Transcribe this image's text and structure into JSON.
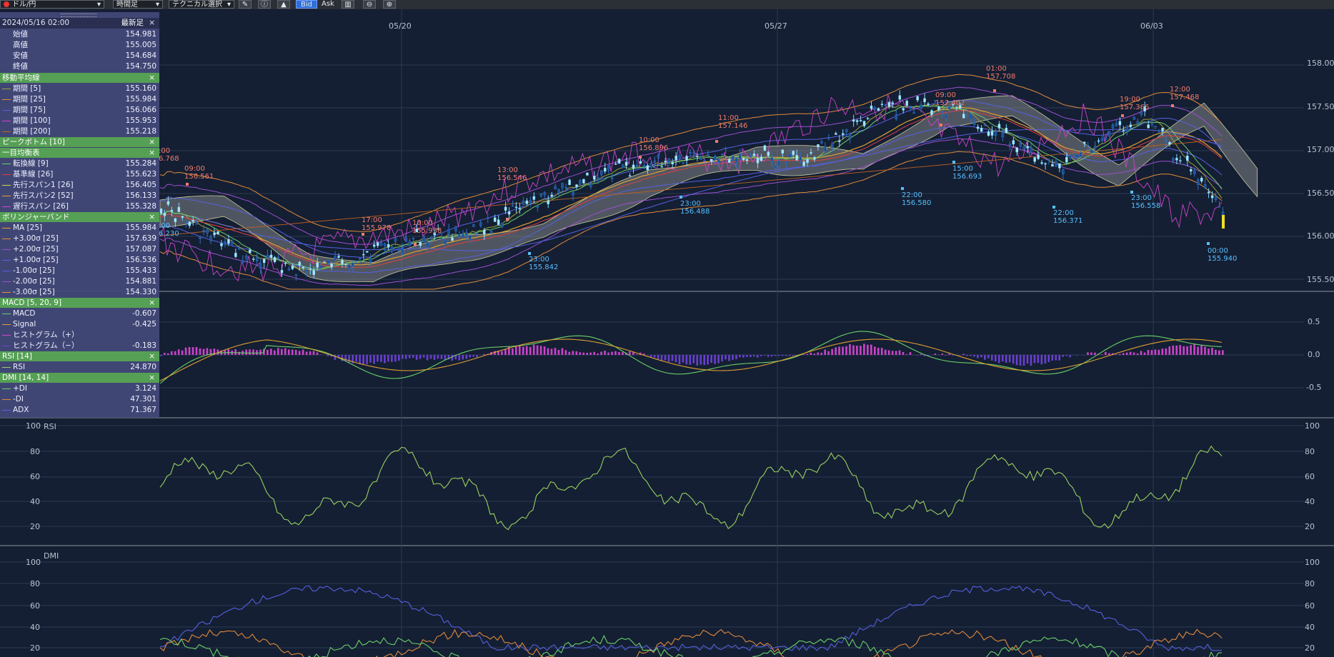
{
  "toolbar": {
    "pair": "ドル/円",
    "timeframe": "時間足",
    "technical": "テクニカル選択",
    "bid": "Bid",
    "ask": "Ask"
  },
  "panel": {
    "date": "2024/05/16 02:00",
    "latest_button": "最新足",
    "close_glyph": "×",
    "ohlc": [
      {
        "label": "始値",
        "value": "154.981"
      },
      {
        "label": "高値",
        "value": "155.005"
      },
      {
        "label": "安値",
        "value": "154.684"
      },
      {
        "label": "終値",
        "value": "154.750"
      }
    ],
    "sma_title": "移動平均線",
    "sma": [
      {
        "label": "期間 [5]",
        "value": "155.160",
        "color": "#9aa33a"
      },
      {
        "label": "期間 [25]",
        "value": "155.984",
        "color": "#e08a3a"
      },
      {
        "label": "期間 [75]",
        "value": "156.066",
        "color": "#5560e0"
      },
      {
        "label": "期間 [100]",
        "value": "155.953",
        "color": "#cc44cc"
      },
      {
        "label": "期間 [200]",
        "value": "155.218",
        "color": "#c06020"
      }
    ],
    "peak_title": "ピークボトム [10]",
    "ichimoku_title": "一目均衡表",
    "ichimoku": [
      {
        "label": "転換線 [9]",
        "value": "155.284",
        "color": "#6ad06a"
      },
      {
        "label": "基準線 [26]",
        "value": "155.623",
        "color": "#e04040"
      },
      {
        "label": "先行スパン1 [26]",
        "value": "156.405",
        "color": "#d6d64a"
      },
      {
        "label": "先行スパン2 [52]",
        "value": "156.133",
        "color": "#e0a030"
      },
      {
        "label": "遅行スパン [26]",
        "value": "155.328",
        "color": "#cc44cc"
      }
    ],
    "bb_title": "ボリンジャーバンド",
    "bb": [
      {
        "label": "MA [25]",
        "value": "155.984",
        "color": "#e0a030"
      },
      {
        "label": "+3.00σ [25]",
        "value": "157.639",
        "color": "#e08a3a"
      },
      {
        "label": "+2.00σ [25]",
        "value": "157.087",
        "color": "#9c4fd0"
      },
      {
        "label": "+1.00σ [25]",
        "value": "156.536",
        "color": "#5560e0"
      },
      {
        "label": "-1.00σ [25]",
        "value": "155.433",
        "color": "#5560e0"
      },
      {
        "label": "-2.00σ [25]",
        "value": "154.881",
        "color": "#9c4fd0"
      },
      {
        "label": "-3.00σ [25]",
        "value": "154.330",
        "color": "#e08a3a"
      }
    ],
    "macd_title": "MACD [5, 20, 9]",
    "macd": [
      {
        "label": "MACD",
        "value": "-0.607",
        "color": "#6ad06a"
      },
      {
        "label": "Signal",
        "value": "-0.425",
        "color": "#e0a030"
      },
      {
        "label": "ヒストグラム（+）",
        "value": "",
        "color": "#cc44cc"
      },
      {
        "label": "ヒストグラム（−）",
        "value": "-0.183",
        "color": "#6a40d0"
      }
    ],
    "rsi_title": "RSI [14]",
    "rsi": [
      {
        "label": "RSI",
        "value": "24.870",
        "color": "#9ad060"
      }
    ],
    "dmi_title": "DMI [14, 14]",
    "dmi": [
      {
        "label": "+DI",
        "value": "3.124",
        "color": "#6ad06a"
      },
      {
        "label": "-DI",
        "value": "47.301",
        "color": "#e0883a"
      },
      {
        "label": "ADX",
        "value": "71.367",
        "color": "#5560e0"
      }
    ]
  },
  "xaxis": [
    "05/20",
    "05/27",
    "06/03"
  ],
  "price_axis": [
    "158.000",
    "157.500",
    "157.000",
    "156.500",
    "156.000",
    "155.500"
  ],
  "macd_axis": [
    "0.5",
    "0.0",
    "-0.5"
  ],
  "rsi_title": "RSI",
  "rsi_axis": [
    "100",
    "80",
    "60",
    "40",
    "20"
  ],
  "dmi_title": "DMI",
  "dmi_axis": [
    "100",
    "80",
    "60",
    "40",
    "20"
  ],
  "annotations": [
    {
      "t": ":00",
      "p": "6.768",
      "kind": "red"
    },
    {
      "t": "09:00",
      "p": "156.561",
      "kind": "red"
    },
    {
      "t": "17:00",
      "p": "155.978",
      "kind": "red"
    },
    {
      "t": "10:00",
      "p": "155.938",
      "kind": "red"
    },
    {
      "t": "13:00",
      "p": "156.546",
      "kind": "red"
    },
    {
      "t": "10:00",
      "p": "156.896",
      "kind": "red"
    },
    {
      "t": "11:00",
      "p": "157.146",
      "kind": "red"
    },
    {
      "t": "09:00",
      "p": "157.402",
      "kind": "red"
    },
    {
      "t": "01:00",
      "p": "157.708",
      "kind": "red"
    },
    {
      "t": "19:00",
      "p": "157.366",
      "kind": "red"
    },
    {
      "t": "12:00",
      "p": "157.468",
      "kind": "red"
    },
    {
      "t": ":00",
      "p": "6.230",
      "kind": "blue"
    },
    {
      "t": "23:00",
      "p": "155.842",
      "kind": "blue"
    },
    {
      "t": "23:00",
      "p": "156.488",
      "kind": "blue"
    },
    {
      "t": "22:00",
      "p": "156.580",
      "kind": "blue"
    },
    {
      "t": "15:00",
      "p": "156.693",
      "kind": "blue"
    },
    {
      "t": "22:00",
      "p": "156.371",
      "kind": "blue"
    },
    {
      "t": "23:00",
      "p": "156.558",
      "kind": "blue"
    },
    {
      "t": "00:00",
      "p": "155.940",
      "kind": "blue"
    }
  ]
}
